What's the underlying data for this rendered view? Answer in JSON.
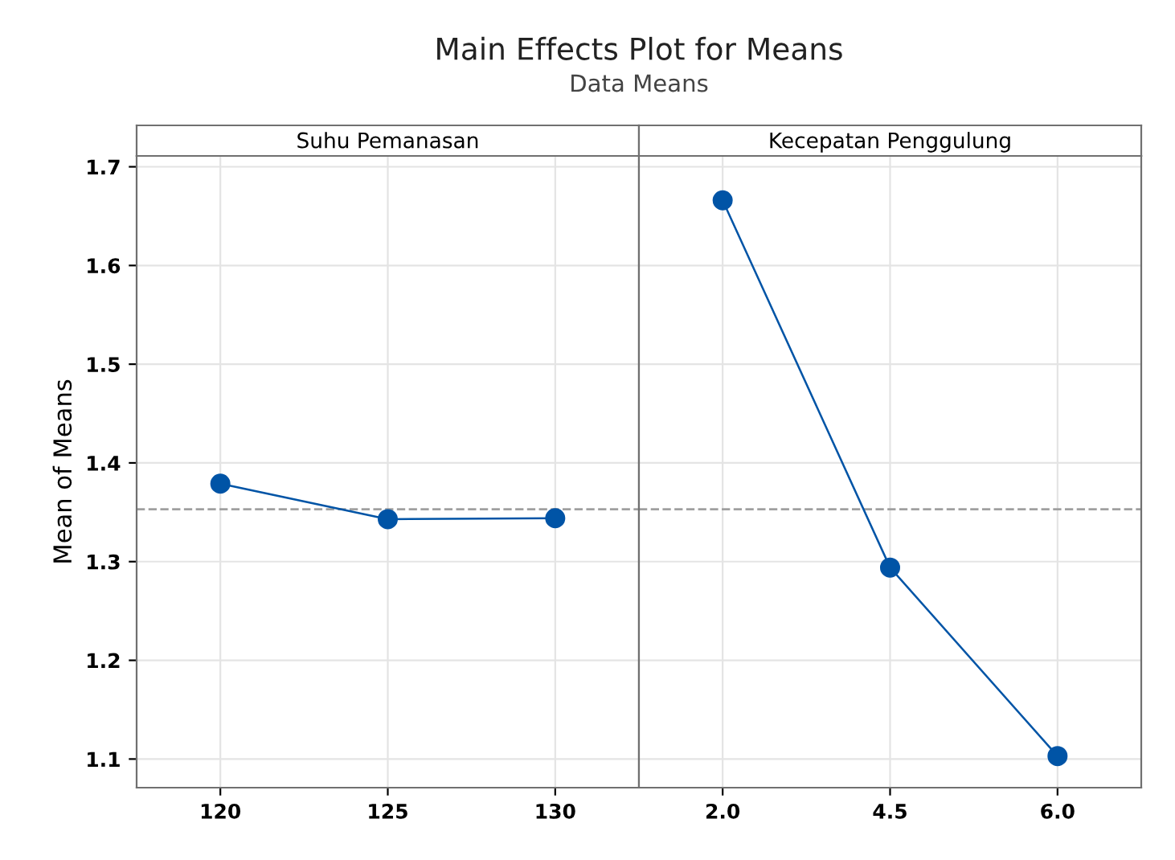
{
  "chart_data": [
    {
      "type": "line",
      "title": "Suhu Pemanasan",
      "ylabel": "Mean of Means",
      "annotations": [
        "Main Effects Plot for Means",
        "Data Means"
      ],
      "categories": [
        "120",
        "125",
        "130"
      ],
      "series": [
        {
          "color": "#0054a6",
          "values": [
            1.379,
            1.343,
            1.344
          ]
        }
      ],
      "ylim": [
        1.071,
        1.711
      ],
      "yticks": [
        1.1,
        1.2,
        1.3,
        1.4,
        1.5,
        1.6,
        1.7
      ],
      "grid": true,
      "marker": "circle",
      "line_style": "solid",
      "ref_lines": [
        {
          "axis": "y",
          "value": 1.353,
          "color": "#a0a0a0",
          "line_style": "dashed"
        }
      ]
    },
    {
      "type": "line",
      "title": "Kecepatan Penggulung",
      "categories": [
        "2.0",
        "4.5",
        "6.0"
      ],
      "series": [
        {
          "color": "#0054a6",
          "values": [
            1.666,
            1.294,
            1.103
          ]
        }
      ],
      "ylim": [
        1.071,
        1.711
      ],
      "yticks": [
        1.1,
        1.2,
        1.3,
        1.4,
        1.5,
        1.6,
        1.7
      ],
      "tick_labels": "x",
      "grid": true,
      "marker": "circle",
      "line_style": "solid",
      "ref_lines": [
        {
          "axis": "y",
          "value": 1.353,
          "color": "#a0a0a0",
          "line_style": "dashed"
        }
      ]
    }
  ]
}
